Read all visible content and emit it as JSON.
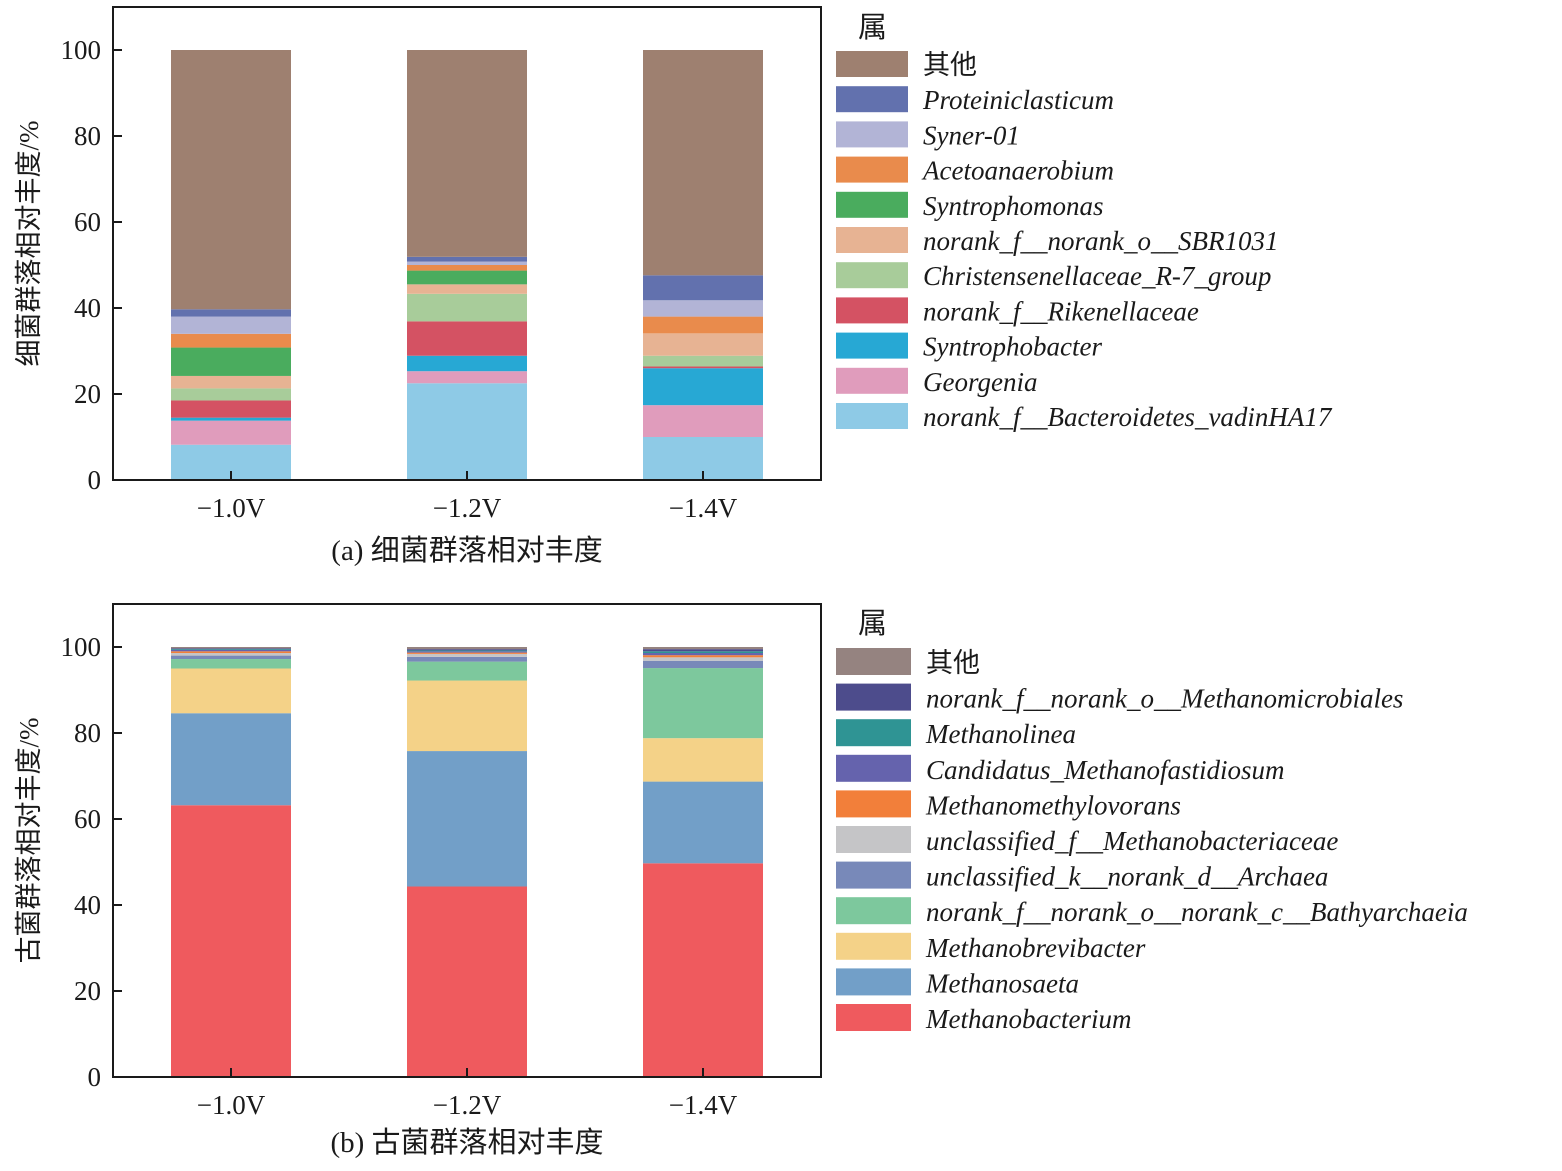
{
  "chart_data": [
    {
      "type": "bar",
      "stacked": true,
      "categories": [
        "−1.0V",
        "−1.2V",
        "−1.4V"
      ],
      "ylabel": "细菌群落相对丰度/%",
      "caption": "(a) 细菌群落相对丰度",
      "ylim": [
        0,
        110
      ],
      "yticks": [
        0,
        20,
        40,
        60,
        80,
        100
      ],
      "legend_title": "属",
      "series": [
        {
          "name": "norank_f__Bacteroidetes_vadinHA17",
          "color": "#8ecae6",
          "values": [
            8.2,
            22.5,
            10.0
          ]
        },
        {
          "name": "Georgenia",
          "color": "#e09cbc",
          "values": [
            5.6,
            2.8,
            7.4
          ]
        },
        {
          "name": "Syntrophobacter",
          "color": "#27a8d4",
          "values": [
            0.7,
            3.6,
            8.6
          ]
        },
        {
          "name": "norank_f__Rikenellaceae",
          "color": "#d45263",
          "values": [
            4.0,
            8.0,
            0.4
          ]
        },
        {
          "name": "Christensenellaceae_R-7_group",
          "color": "#a8cc9a",
          "values": [
            2.8,
            6.4,
            2.5
          ]
        },
        {
          "name": "norank_f__norank_o__SBR1031",
          "color": "#e7b393",
          "values": [
            2.9,
            2.2,
            5.2
          ]
        },
        {
          "name": "Syntrophomonas",
          "color": "#4aac5e",
          "values": [
            6.6,
            3.2,
            0.0
          ]
        },
        {
          "name": "Acetoanaerobium",
          "color": "#e98b4c",
          "values": [
            3.2,
            1.3,
            3.9
          ]
        },
        {
          "name": "Syner-01",
          "color": "#b2b4d6",
          "values": [
            4.0,
            0.8,
            3.8
          ]
        },
        {
          "name": "Proteiniclasticum",
          "color": "#6271ae",
          "values": [
            1.7,
            1.1,
            5.8
          ]
        },
        {
          "name": "其他",
          "color": "#9e8070",
          "values": [
            60.3,
            48.1,
            52.4
          ]
        }
      ]
    },
    {
      "type": "bar",
      "stacked": true,
      "categories": [
        "−1.0V",
        "−1.2V",
        "−1.4V"
      ],
      "ylabel": "古菌群落相对丰度/%",
      "caption": "(b) 古菌群落相对丰度",
      "ylim": [
        0,
        110
      ],
      "yticks": [
        0,
        20,
        40,
        60,
        80,
        100
      ],
      "legend_title": "属",
      "series": [
        {
          "name": "Methanobacterium",
          "color": "#ef5a5e",
          "values": [
            63.2,
            44.3,
            49.7
          ]
        },
        {
          "name": "Methanosaeta",
          "color": "#729fc8",
          "values": [
            21.4,
            31.5,
            19.0
          ]
        },
        {
          "name": "Methanobrevibacter",
          "color": "#f4d288",
          "values": [
            10.4,
            16.4,
            10.1
          ]
        },
        {
          "name": "norank_f__norank_o__norank_c__Bathyarchaeia",
          "color": "#7dc89d",
          "values": [
            2.2,
            4.4,
            16.3
          ]
        },
        {
          "name": "unclassified_k__norank_d__Archaea",
          "color": "#7889b9",
          "values": [
            0.8,
            1.1,
            1.7
          ]
        },
        {
          "name": "unclassified_f__Methanobacteriaceae",
          "color": "#c5c5c7",
          "values": [
            0.6,
            0.7,
            0.8
          ]
        },
        {
          "name": "Methanomethylovorans",
          "color": "#f27f3a",
          "values": [
            0.4,
            0.3,
            0.5
          ]
        },
        {
          "name": "Candidatus_Methanofastidiosum",
          "color": "#6563ad",
          "values": [
            0.3,
            0.3,
            0.5
          ]
        },
        {
          "name": "Methanolinea",
          "color": "#2f9494",
          "values": [
            0.2,
            0.2,
            0.4
          ]
        },
        {
          "name": "norank_f__norank_o__Methanomicrobiales",
          "color": "#4d4c8c",
          "values": [
            0.2,
            0.3,
            0.5
          ]
        },
        {
          "name": "其他",
          "color": "#958380",
          "values": [
            0.3,
            0.5,
            0.5
          ]
        }
      ]
    }
  ]
}
